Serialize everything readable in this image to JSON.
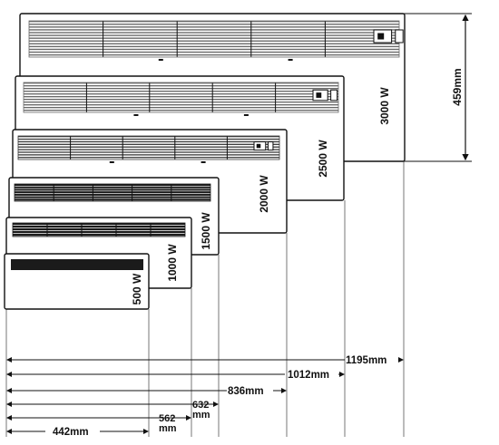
{
  "colors": {
    "line": "#111111",
    "grille_dark": "#1b1b1b",
    "grille_mid": "#3a3a3a",
    "grille_light": "#6a6a6a",
    "panel": "#ffffff",
    "guide": "#555555"
  },
  "height_dimension": {
    "label": "459mm"
  },
  "heaters": [
    {
      "power": "500 W",
      "width_label": "442mm",
      "grille": "dark",
      "control_icon": false
    },
    {
      "power": "1000 W",
      "width_label": "562\nmm",
      "grille": "dark",
      "control_icon": false
    },
    {
      "power": "1500 W",
      "width_label": "632\nmm",
      "grille": "dark",
      "control_icon": false
    },
    {
      "power": "2000 W",
      "width_label": "836mm",
      "grille": "mid",
      "control_icon": true
    },
    {
      "power": "2500 W",
      "width_label": "1012mm",
      "grille": "light",
      "control_icon": true
    },
    {
      "power": "3000 W",
      "width_label": "1195mm",
      "grille": "light",
      "control_icon": true
    }
  ]
}
